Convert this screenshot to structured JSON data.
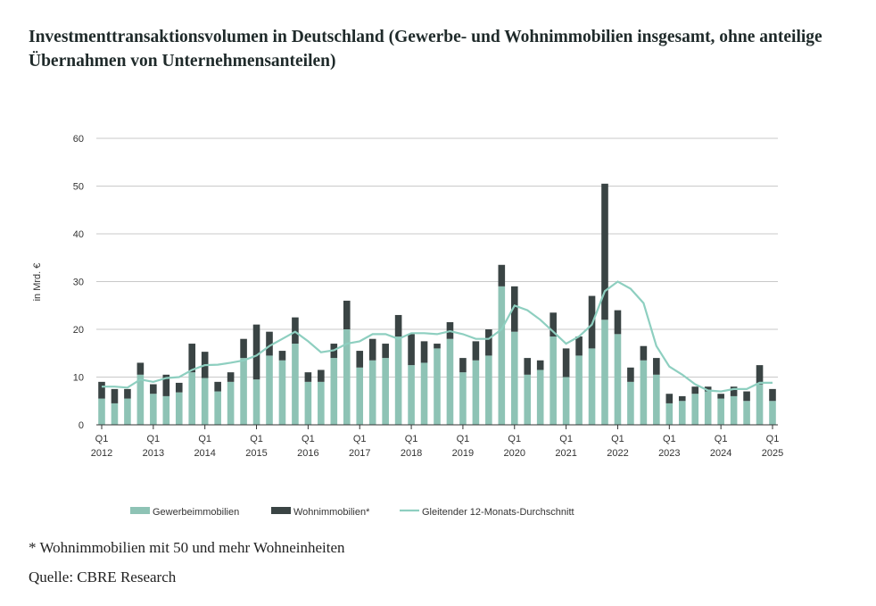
{
  "title": "Investmenttransaktionsvolumen in Deutschland (Gewerbe- und Wohnimmobilien insgesamt, ohne anteilige Übernahmen von Unternehmensanteilen)",
  "footnote": "* Wohnimmobilien mit 50 und mehr Wohneinheiten",
  "source": "Quelle: CBRE Research",
  "colors": {
    "gewerbe": "#8ec3b5",
    "wohn": "#3a4444",
    "line": "#8ecfc0",
    "grid": "#c9c9c9",
    "axis": "#333333"
  },
  "chart_data": {
    "type": "bar",
    "stacked": true,
    "ylabel": "in Mrd. €",
    "ylim": [
      0,
      60
    ],
    "yticks": [
      0,
      10,
      20,
      30,
      40,
      50,
      60
    ],
    "xtick_labels": [
      {
        "index": 0,
        "q": "Q1",
        "year": "2012"
      },
      {
        "index": 4,
        "q": "Q1",
        "year": "2013"
      },
      {
        "index": 8,
        "q": "Q1",
        "year": "2014"
      },
      {
        "index": 12,
        "q": "Q1",
        "year": "2015"
      },
      {
        "index": 16,
        "q": "Q1",
        "year": "2016"
      },
      {
        "index": 20,
        "q": "Q1",
        "year": "2017"
      },
      {
        "index": 24,
        "q": "Q1",
        "year": "2018"
      },
      {
        "index": 28,
        "q": "Q1",
        "year": "2019"
      },
      {
        "index": 32,
        "q": "Q1",
        "year": "2020"
      },
      {
        "index": 36,
        "q": "Q1",
        "year": "2021"
      },
      {
        "index": 40,
        "q": "Q1",
        "year": "2022"
      },
      {
        "index": 44,
        "q": "Q1",
        "year": "2023"
      },
      {
        "index": 48,
        "q": "Q1",
        "year": "2024"
      },
      {
        "index": 52,
        "q": "Q1",
        "year": "2025"
      }
    ],
    "categories": [
      "Q1 2012",
      "Q2 2012",
      "Q3 2012",
      "Q4 2012",
      "Q1 2013",
      "Q2 2013",
      "Q3 2013",
      "Q4 2013",
      "Q1 2014",
      "Q2 2014",
      "Q3 2014",
      "Q4 2014",
      "Q1 2015",
      "Q2 2015",
      "Q3 2015",
      "Q4 2015",
      "Q1 2016",
      "Q2 2016",
      "Q3 2016",
      "Q4 2016",
      "Q1 2017",
      "Q2 2017",
      "Q3 2017",
      "Q4 2017",
      "Q1 2018",
      "Q2 2018",
      "Q3 2018",
      "Q4 2018",
      "Q1 2019",
      "Q2 2019",
      "Q3 2019",
      "Q4 2019",
      "Q1 2020",
      "Q2 2020",
      "Q3 2020",
      "Q4 2020",
      "Q1 2021",
      "Q2 2021",
      "Q3 2021",
      "Q4 2021",
      "Q1 2022",
      "Q2 2022",
      "Q3 2022",
      "Q4 2022",
      "Q1 2023",
      "Q2 2023",
      "Q3 2023",
      "Q4 2023",
      "Q1 2024",
      "Q2 2024",
      "Q3 2024",
      "Q4 2024",
      "Q1 2025"
    ],
    "series": [
      {
        "name": "Gewerbeimmobilien",
        "kind": "bar",
        "values": [
          5.5,
          4.5,
          5.5,
          10.5,
          6.5,
          6.0,
          6.8,
          11.0,
          9.8,
          7.0,
          9.0,
          14.0,
          9.5,
          14.5,
          13.5,
          17.0,
          9.0,
          9.0,
          14.0,
          20.0,
          12.0,
          13.5,
          14.0,
          18.5,
          12.5,
          13.0,
          16.0,
          18.0,
          11.0,
          13.5,
          14.5,
          29.0,
          19.5,
          10.5,
          11.5,
          18.5,
          10.0,
          14.5,
          16.0,
          22.0,
          19.0,
          9.0,
          13.5,
          10.5,
          4.5,
          5.0,
          6.5,
          7.0,
          5.5,
          6.0,
          5.0,
          8.5,
          5.0
        ]
      },
      {
        "name": "Wohnimmobilien*",
        "kind": "bar",
        "values": [
          3.5,
          3.0,
          2.0,
          2.5,
          2.0,
          4.5,
          2.0,
          6.0,
          5.5,
          2.0,
          2.0,
          4.0,
          11.5,
          5.0,
          2.0,
          5.5,
          2.0,
          2.5,
          3.0,
          6.0,
          3.5,
          4.5,
          3.0,
          4.5,
          6.5,
          4.5,
          1.0,
          3.5,
          3.0,
          4.0,
          5.5,
          4.5,
          9.5,
          3.5,
          2.0,
          5.0,
          6.0,
          4.0,
          11.0,
          28.5,
          5.0,
          3.0,
          3.0,
          3.5,
          2.0,
          1.0,
          1.5,
          1.0,
          1.0,
          2.0,
          2.0,
          4.0,
          2.5
        ]
      },
      {
        "name": "Gleitender 12-Monats-Durchschnitt",
        "kind": "line",
        "values": [
          8.0,
          8.0,
          7.8,
          9.5,
          9.0,
          9.8,
          10.0,
          11.5,
          12.5,
          12.6,
          13.0,
          13.5,
          14.5,
          16.5,
          18.0,
          19.5,
          17.5,
          15.2,
          15.6,
          17.0,
          17.5,
          19.0,
          19.0,
          18.0,
          19.2,
          19.2,
          19.0,
          19.6,
          19.0,
          18.0,
          18.0,
          20.0,
          25.0,
          24.0,
          22.0,
          19.5,
          17.0,
          18.5,
          21.0,
          28.0,
          30.0,
          28.5,
          25.5,
          16.5,
          12.2,
          10.5,
          8.5,
          7.2,
          7.0,
          7.5,
          7.5,
          8.8,
          8.8
        ]
      }
    ]
  }
}
